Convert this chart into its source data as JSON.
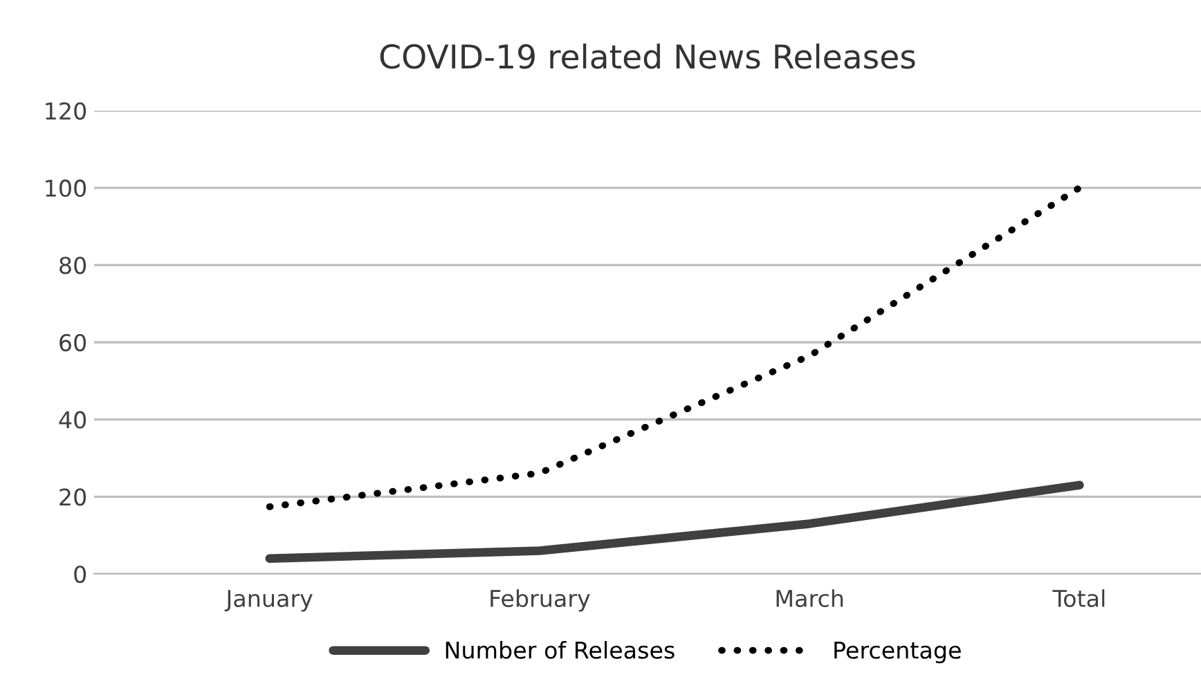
{
  "chart_data": {
    "type": "line",
    "title": "COVID-19 related News Releases",
    "categories": [
      "January",
      "February",
      "March",
      "Total"
    ],
    "series": [
      {
        "name": "Number of Releases",
        "color": "#404040",
        "values": [
          4,
          6,
          13,
          23
        ],
        "line_style": "solid"
      },
      {
        "name": "Percentage",
        "color": "#000000",
        "values": [
          17.4,
          26.1,
          56.5,
          100
        ],
        "line_style": "dotted"
      }
    ],
    "ylim": [
      0,
      120
    ],
    "yticks": [
      0,
      20,
      40,
      60,
      80,
      100,
      120
    ],
    "grid": "y",
    "legend": "bottom",
    "marker": "none"
  }
}
